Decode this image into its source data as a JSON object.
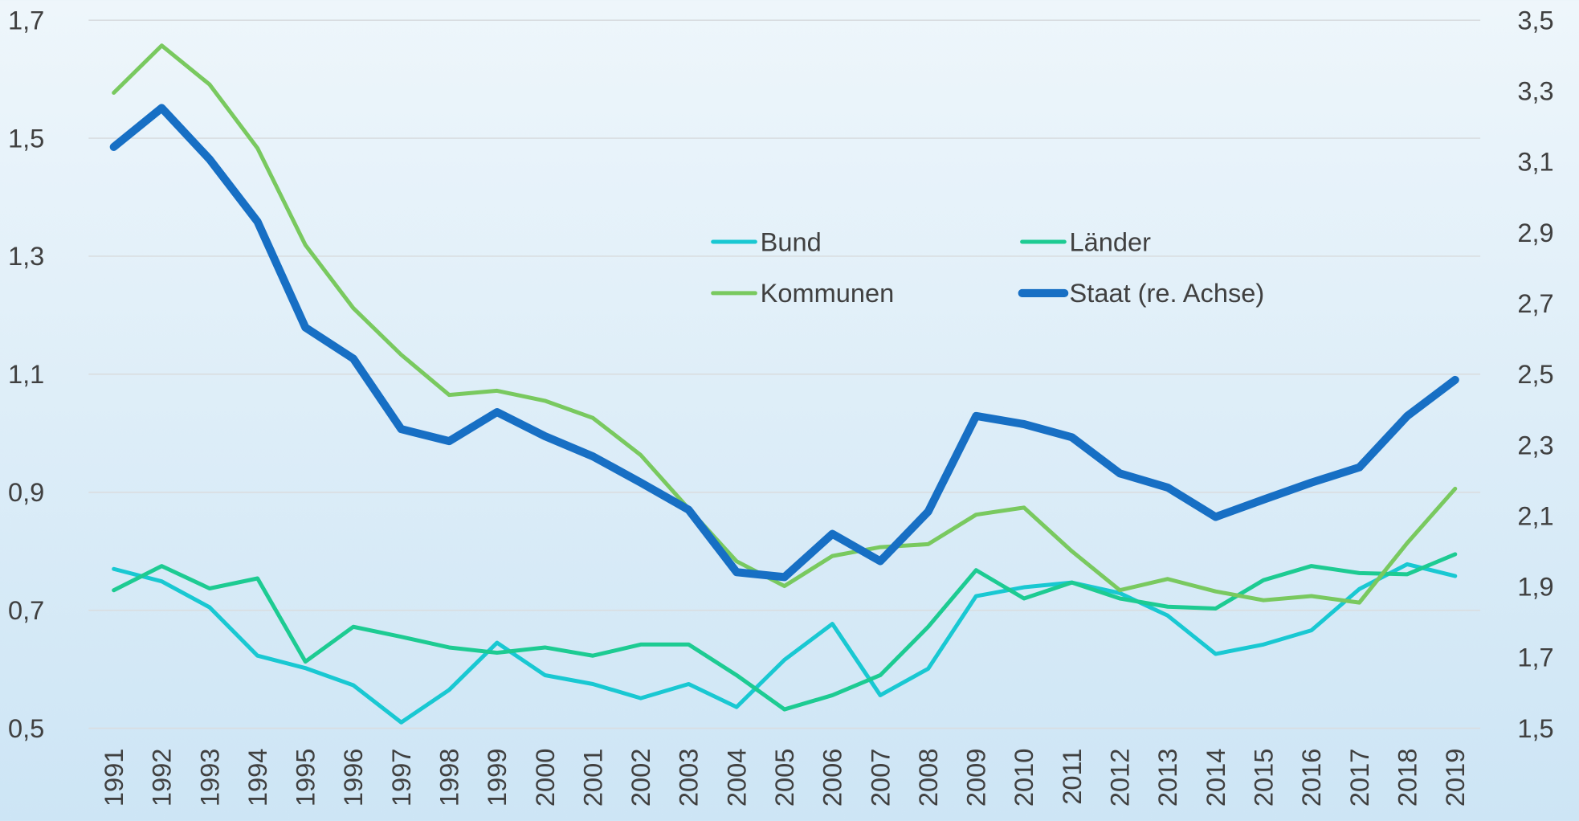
{
  "chart_data": {
    "type": "line",
    "categories": [
      "1991",
      "1992",
      "1993",
      "1994",
      "1995",
      "1996",
      "1997",
      "1998",
      "1999",
      "2000",
      "2001",
      "2002",
      "2003",
      "2004",
      "2005",
      "2006",
      "2007",
      "2008",
      "2009",
      "2010",
      "2011",
      "2012",
      "2013",
      "2014",
      "2015",
      "2016",
      "2017",
      "2018",
      "2019"
    ],
    "series": [
      {
        "name": "Bund",
        "color": "#19c8d2",
        "values": [
          0.77,
          0.749,
          0.705,
          0.623,
          0.602,
          0.573,
          0.51,
          0.565,
          0.645,
          0.59,
          0.575,
          0.551,
          0.575,
          0.536,
          0.616,
          0.677,
          0.556,
          0.601,
          0.724,
          0.739,
          0.747,
          0.729,
          0.691,
          0.626,
          0.642,
          0.666,
          0.736,
          0.778,
          0.758
        ]
      },
      {
        "name": "Länder",
        "color": "#1dcb92",
        "values": [
          0.734,
          0.775,
          0.737,
          0.754,
          0.613,
          0.672,
          0.655,
          0.637,
          0.628,
          0.637,
          0.623,
          0.642,
          0.642,
          0.59,
          0.532,
          0.556,
          0.59,
          0.672,
          0.768,
          0.72,
          0.747,
          0.72,
          0.706,
          0.703,
          0.751,
          0.775,
          0.763,
          0.761,
          0.795
        ]
      },
      {
        "name": "Kommunen",
        "color": "#79c95f",
        "values": [
          1.577,
          1.657,
          1.591,
          1.483,
          1.319,
          1.212,
          1.133,
          1.065,
          1.072,
          1.055,
          1.026,
          0.963,
          0.872,
          0.783,
          0.741,
          0.792,
          0.807,
          0.812,
          0.862,
          0.874,
          0.8,
          0.734,
          0.753,
          0.732,
          0.717,
          0.724,
          0.713,
          0.814,
          0.906
        ]
      },
      {
        "name": "Staat (re. Achse)",
        "color": "#176fc4",
        "axis": "y2",
        "values": [
          3.142,
          3.252,
          3.107,
          2.931,
          2.632,
          2.544,
          2.345,
          2.311,
          2.393,
          2.325,
          2.268,
          2.194,
          2.117,
          1.941,
          1.927,
          2.049,
          1.972,
          2.112,
          2.382,
          2.359,
          2.322,
          2.22,
          2.18,
          2.097,
          2.146,
          2.194,
          2.237,
          2.382,
          2.484
        ]
      }
    ],
    "ylim": [
      0.5,
      1.7
    ],
    "yticks": [
      {
        "value": 0.5,
        "label": "0,5"
      },
      {
        "value": 0.7,
        "label": "0,7"
      },
      {
        "value": 0.9,
        "label": "0,9"
      },
      {
        "value": 1.1,
        "label": "1,1"
      },
      {
        "value": 1.3,
        "label": "1,3"
      },
      {
        "value": 1.5,
        "label": "1,5"
      },
      {
        "value": 1.7,
        "label": "1,7"
      }
    ],
    "y2lim": [
      1.5,
      3.5
    ],
    "y2ticks": [
      {
        "value": 1.5,
        "label": "1,5"
      },
      {
        "value": 1.7,
        "label": "1,7"
      },
      {
        "value": 1.9,
        "label": "1,9"
      },
      {
        "value": 2.1,
        "label": "2,1"
      },
      {
        "value": 2.3,
        "label": "2,3"
      },
      {
        "value": 2.5,
        "label": "2,5"
      },
      {
        "value": 2.7,
        "label": "2,7"
      },
      {
        "value": 2.9,
        "label": "2,9"
      },
      {
        "value": 3.1,
        "label": "3,1"
      },
      {
        "value": 3.3,
        "label": "3,3"
      },
      {
        "value": 3.5,
        "label": "3,5"
      }
    ],
    "grid": true,
    "legend": "center"
  }
}
